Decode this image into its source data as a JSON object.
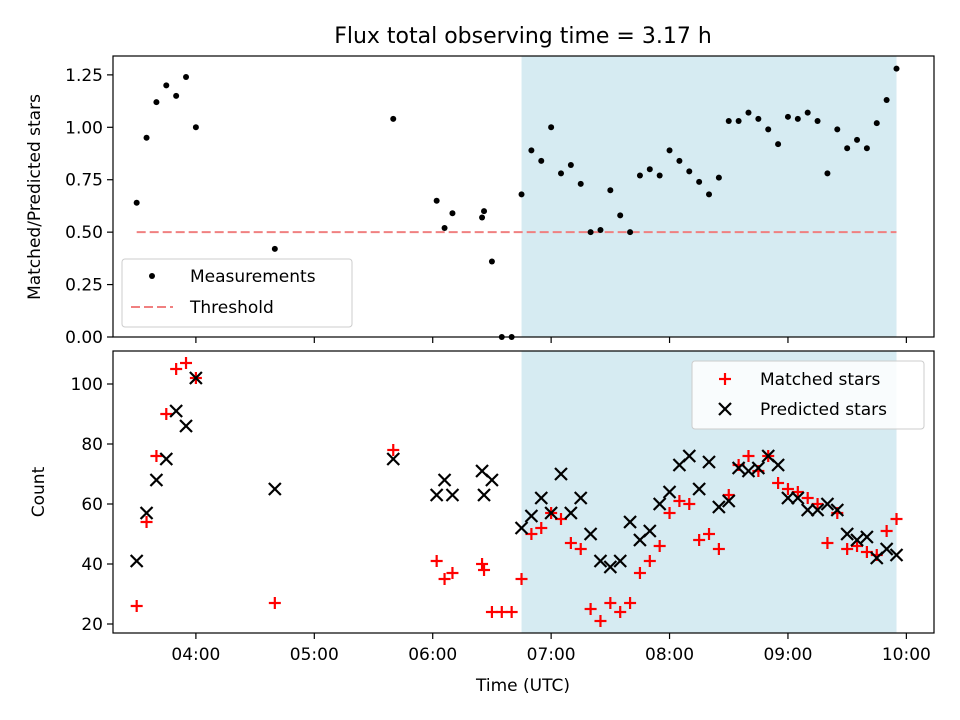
{
  "chart_data": [
    {
      "type": "scatter",
      "title": "Flux total observing time = 3.17 h",
      "ylabel": "Matched/Predicted stars",
      "xlabel": "",
      "xlim": [
        "03:18",
        "10:14"
      ],
      "ylim": [
        0,
        1.34
      ],
      "yticks": [
        "0.00",
        "0.25",
        "0.50",
        "0.75",
        "1.00",
        "1.25"
      ],
      "xticks": [
        "04:00",
        "05:00",
        "06:00",
        "07:00",
        "08:00",
        "09:00",
        "10:00"
      ],
      "shaded_span": [
        "06:45",
        "09:55"
      ],
      "legend": {
        "position": "lower-left",
        "entries": [
          "Measurements",
          "Threshold"
        ]
      },
      "colors": {
        "measurements": "#000000",
        "threshold": "#f08080",
        "span": "#add8e6"
      },
      "threshold": {
        "name": "Threshold",
        "value": 0.5,
        "x_range": [
          "03:30",
          "09:55"
        ]
      },
      "series": [
        {
          "name": "Measurements",
          "points": [
            [
              "03:30",
              0.64
            ],
            [
              "03:35",
              0.95
            ],
            [
              "03:40",
              1.12
            ],
            [
              "03:45",
              1.2
            ],
            [
              "03:50",
              1.15
            ],
            [
              "03:55",
              1.24
            ],
            [
              "04:00",
              1.0
            ],
            [
              "04:40",
              0.42
            ],
            [
              "05:40",
              1.04
            ],
            [
              "06:02",
              0.65
            ],
            [
              "06:06",
              0.52
            ],
            [
              "06:10",
              0.59
            ],
            [
              "06:25",
              0.57
            ],
            [
              "06:26",
              0.6
            ],
            [
              "06:30",
              0.36
            ],
            [
              "06:35",
              0.0
            ],
            [
              "06:40",
              0.0
            ],
            [
              "06:45",
              0.68
            ],
            [
              "06:50",
              0.89
            ],
            [
              "06:55",
              0.84
            ],
            [
              "07:00",
              1.0
            ],
            [
              "07:05",
              0.78
            ],
            [
              "07:10",
              0.82
            ],
            [
              "07:15",
              0.73
            ],
            [
              "07:20",
              0.5
            ],
            [
              "07:25",
              0.51
            ],
            [
              "07:30",
              0.7
            ],
            [
              "07:35",
              0.58
            ],
            [
              "07:40",
              0.5
            ],
            [
              "07:45",
              0.77
            ],
            [
              "07:50",
              0.8
            ],
            [
              "07:55",
              0.77
            ],
            [
              "08:00",
              0.89
            ],
            [
              "08:05",
              0.84
            ],
            [
              "08:10",
              0.79
            ],
            [
              "08:15",
              0.74
            ],
            [
              "08:20",
              0.68
            ],
            [
              "08:25",
              0.76
            ],
            [
              "08:30",
              1.03
            ],
            [
              "08:35",
              1.03
            ],
            [
              "08:40",
              1.07
            ],
            [
              "08:45",
              1.04
            ],
            [
              "08:50",
              0.99
            ],
            [
              "08:55",
              0.92
            ],
            [
              "09:00",
              1.05
            ],
            [
              "09:05",
              1.04
            ],
            [
              "09:10",
              1.07
            ],
            [
              "09:15",
              1.03
            ],
            [
              "09:20",
              0.78
            ],
            [
              "09:25",
              0.99
            ],
            [
              "09:30",
              0.9
            ],
            [
              "09:35",
              0.94
            ],
            [
              "09:40",
              0.9
            ],
            [
              "09:45",
              1.02
            ],
            [
              "09:50",
              1.13
            ],
            [
              "09:55",
              1.28
            ]
          ]
        }
      ]
    },
    {
      "type": "scatter",
      "title": "",
      "ylabel": "Count",
      "xlabel": "Time (UTC)",
      "xlim": [
        "03:18",
        "10:14"
      ],
      "ylim": [
        17,
        111
      ],
      "yticks": [
        "20",
        "40",
        "60",
        "80",
        "100"
      ],
      "xticks": [
        "04:00",
        "05:00",
        "06:00",
        "07:00",
        "08:00",
        "09:00",
        "10:00"
      ],
      "shaded_span": [
        "06:45",
        "09:55"
      ],
      "legend": {
        "position": "top-right",
        "entries": [
          "Matched stars",
          "Predicted stars"
        ]
      },
      "colors": {
        "matched": "#ff0000",
        "predicted": "#000000",
        "span": "#add8e6"
      },
      "series": [
        {
          "name": "Matched stars",
          "points": [
            [
              "03:30",
              26
            ],
            [
              "03:35",
              54
            ],
            [
              "03:40",
              76
            ],
            [
              "03:45",
              90
            ],
            [
              "03:50",
              105
            ],
            [
              "03:55",
              107
            ],
            [
              "04:00",
              102
            ],
            [
              "04:40",
              27
            ],
            [
              "05:40",
              78
            ],
            [
              "06:02",
              41
            ],
            [
              "06:06",
              35
            ],
            [
              "06:10",
              37
            ],
            [
              "06:25",
              40
            ],
            [
              "06:26",
              38
            ],
            [
              "06:30",
              24
            ],
            [
              "06:35",
              24
            ],
            [
              "06:40",
              24
            ],
            [
              "06:45",
              35
            ],
            [
              "06:50",
              50
            ],
            [
              "06:55",
              52
            ],
            [
              "07:00",
              57
            ],
            [
              "07:05",
              55
            ],
            [
              "07:10",
              47
            ],
            [
              "07:15",
              45
            ],
            [
              "07:20",
              25
            ],
            [
              "07:25",
              21
            ],
            [
              "07:30",
              27
            ],
            [
              "07:35",
              24
            ],
            [
              "07:40",
              27
            ],
            [
              "07:45",
              37
            ],
            [
              "07:50",
              41
            ],
            [
              "07:55",
              46
            ],
            [
              "08:00",
              57
            ],
            [
              "08:05",
              61
            ],
            [
              "08:10",
              60
            ],
            [
              "08:15",
              48
            ],
            [
              "08:20",
              50
            ],
            [
              "08:25",
              45
            ],
            [
              "08:30",
              63
            ],
            [
              "08:35",
              73
            ],
            [
              "08:40",
              76
            ],
            [
              "08:45",
              71
            ],
            [
              "08:50",
              76
            ],
            [
              "08:55",
              67
            ],
            [
              "09:00",
              65
            ],
            [
              "09:05",
              64
            ],
            [
              "09:10",
              62
            ],
            [
              "09:15",
              60
            ],
            [
              "09:20",
              47
            ],
            [
              "09:25",
              57
            ],
            [
              "09:30",
              45
            ],
            [
              "09:35",
              46
            ],
            [
              "09:40",
              44
            ],
            [
              "09:45",
              43
            ],
            [
              "09:50",
              51
            ],
            [
              "09:55",
              55
            ]
          ]
        },
        {
          "name": "Predicted stars",
          "points": [
            [
              "03:30",
              41
            ],
            [
              "03:35",
              57
            ],
            [
              "03:40",
              68
            ],
            [
              "03:45",
              75
            ],
            [
              "03:50",
              91
            ],
            [
              "03:55",
              86
            ],
            [
              "04:00",
              102
            ],
            [
              "04:40",
              65
            ],
            [
              "05:40",
              75
            ],
            [
              "06:02",
              63
            ],
            [
              "06:06",
              68
            ],
            [
              "06:10",
              63
            ],
            [
              "06:25",
              71
            ],
            [
              "06:26",
              63
            ],
            [
              "06:30",
              68
            ],
            [
              "06:45",
              52
            ],
            [
              "06:50",
              56
            ],
            [
              "06:55",
              62
            ],
            [
              "07:00",
              57
            ],
            [
              "07:05",
              70
            ],
            [
              "07:10",
              57
            ],
            [
              "07:15",
              62
            ],
            [
              "07:20",
              50
            ],
            [
              "07:25",
              41
            ],
            [
              "07:30",
              39
            ],
            [
              "07:35",
              41
            ],
            [
              "07:40",
              54
            ],
            [
              "07:45",
              48
            ],
            [
              "07:50",
              51
            ],
            [
              "07:55",
              60
            ],
            [
              "08:00",
              64
            ],
            [
              "08:05",
              73
            ],
            [
              "08:10",
              76
            ],
            [
              "08:15",
              65
            ],
            [
              "08:20",
              74
            ],
            [
              "08:25",
              59
            ],
            [
              "08:30",
              61
            ],
            [
              "08:35",
              72
            ],
            [
              "08:40",
              71
            ],
            [
              "08:45",
              72
            ],
            [
              "08:50",
              76
            ],
            [
              "08:55",
              73
            ],
            [
              "09:00",
              62
            ],
            [
              "09:05",
              62
            ],
            [
              "09:10",
              58
            ],
            [
              "09:15",
              58
            ],
            [
              "09:20",
              60
            ],
            [
              "09:25",
              58
            ],
            [
              "09:30",
              50
            ],
            [
              "09:35",
              48
            ],
            [
              "09:40",
              49
            ],
            [
              "09:45",
              42
            ],
            [
              "09:50",
              45
            ],
            [
              "09:55",
              43
            ]
          ]
        }
      ]
    }
  ]
}
